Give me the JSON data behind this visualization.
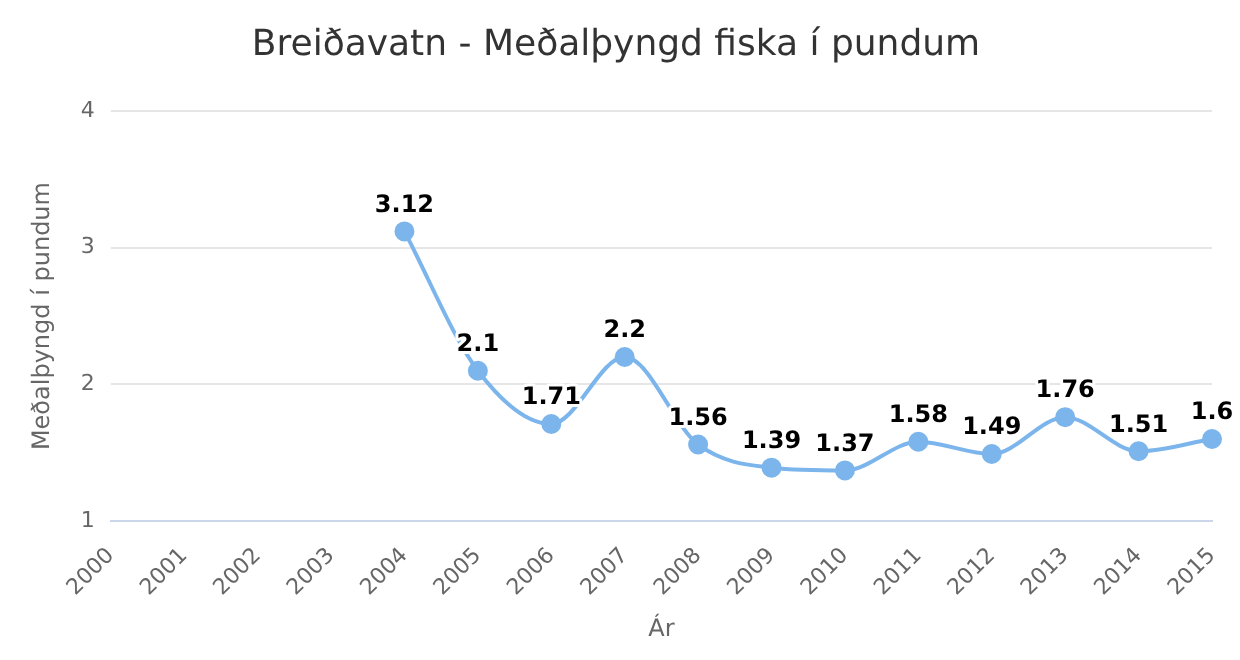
{
  "chart_data": {
    "type": "line",
    "title": "Breiðavatn - Meðalþyngd fiska í pundum",
    "xlabel": "Ár",
    "ylabel": "Meðalþyngd í pundum",
    "categories": [
      "2000",
      "2001",
      "2002",
      "2003",
      "2004",
      "2005",
      "2006",
      "2007",
      "2008",
      "2009",
      "2010",
      "2011",
      "2012",
      "2013",
      "2014",
      "2015"
    ],
    "series": [
      {
        "color": "#7cb5ec",
        "values": [
          null,
          null,
          null,
          null,
          3.12,
          2.1,
          1.71,
          2.2,
          1.56,
          1.39,
          1.37,
          1.58,
          1.49,
          1.76,
          1.51,
          1.6
        ]
      }
    ],
    "ylim": [
      1,
      4
    ],
    "yticks": [
      1,
      2,
      3,
      4
    ],
    "grid": "y",
    "legend": false,
    "marker": "circle",
    "line_style": "solid",
    "data_labels": true
  }
}
